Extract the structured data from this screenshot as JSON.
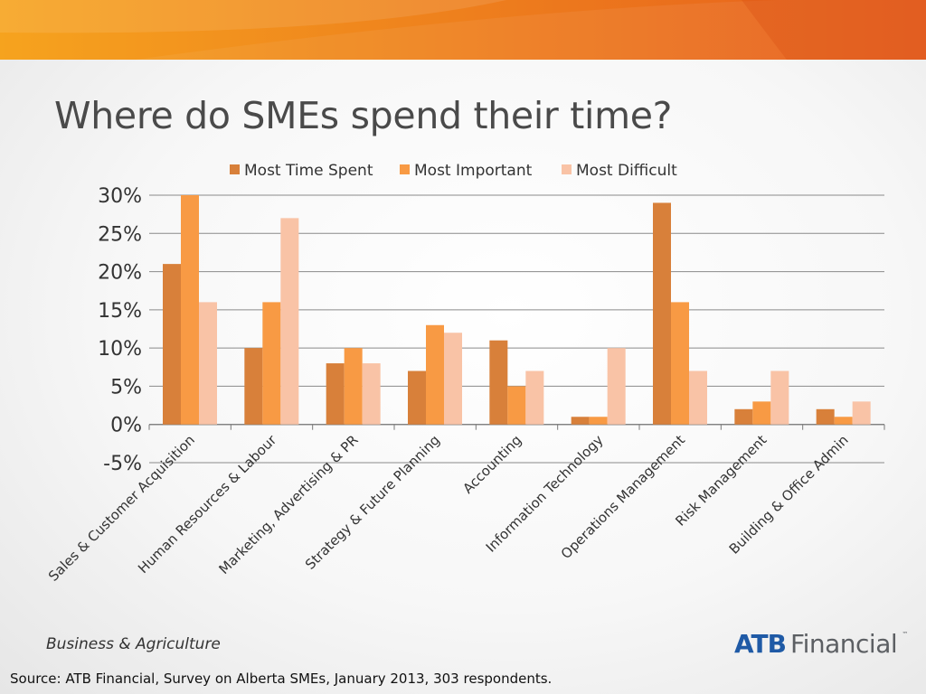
{
  "slide": {
    "title": "Where do SMEs spend their time?",
    "footer": "Business & Agriculture",
    "source": "Source:  ATB Financial, Survey on Alberta SMEs, January 2013, 303 respondents.",
    "logo": {
      "brand": "ATB",
      "suffix": "Financial",
      "mark": "™"
    }
  },
  "colors": {
    "banner_start": "#f6a31e",
    "banner_end": "#e65c1c",
    "series": [
      "#d8803a",
      "#f89a44",
      "#f9c3a6"
    ],
    "gridline": "#8a8a8a"
  },
  "chart_data": {
    "type": "bar",
    "title": "",
    "xlabel": "",
    "ylabel": "",
    "ylim": [
      -5,
      30
    ],
    "y_ticks": [
      -5,
      0,
      5,
      10,
      15,
      20,
      25,
      30
    ],
    "y_tick_labels": [
      "-5%",
      "0%",
      "5%",
      "10%",
      "15%",
      "20%",
      "25%",
      "30%"
    ],
    "grid": true,
    "legend_position": "top",
    "categories": [
      "Sales & Customer Acquisition",
      "Human Resources & Labour",
      "Marketing, Advertising & PR",
      "Strategy & Future Planning",
      "Accounting",
      "Information Technology",
      "Operations Management",
      "Risk Management",
      "Building & Office Admin"
    ],
    "series": [
      {
        "name": "Most Time Spent",
        "values": [
          21,
          10,
          8,
          7,
          11,
          1,
          29,
          2,
          2
        ]
      },
      {
        "name": "Most Important",
        "values": [
          30,
          16,
          10,
          13,
          5,
          1,
          16,
          3,
          1
        ]
      },
      {
        "name": "Most Difficult",
        "values": [
          16,
          27,
          8,
          12,
          7,
          10,
          7,
          7,
          3
        ]
      }
    ]
  }
}
